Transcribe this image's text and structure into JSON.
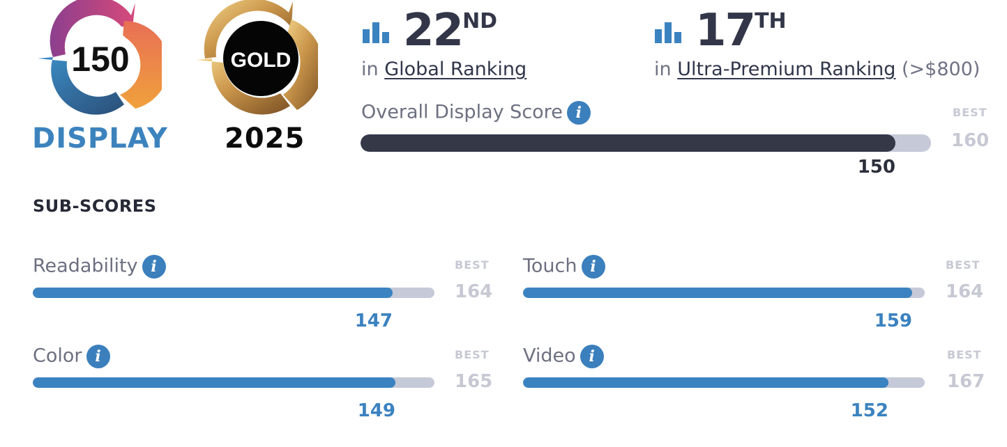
{
  "badges": {
    "display": {
      "score": "150",
      "caption": "DISPLAY"
    },
    "gold": {
      "label": "GOLD",
      "year": "2025"
    }
  },
  "rankings": {
    "global": {
      "rank": "22",
      "suffix": "ND",
      "prefix": "in",
      "link": "Global Ranking"
    },
    "ultra": {
      "rank": "17",
      "suffix": "TH",
      "prefix": "in",
      "link": "Ultra-Premium Ranking",
      "range": "(>$800)"
    }
  },
  "overall": {
    "label": "Overall Display Score",
    "best_label": "BEST",
    "best": 160,
    "score": 150
  },
  "subscores": {
    "title": "SUB-SCORES",
    "items": [
      {
        "label": "Readability",
        "best_label": "BEST",
        "best": 164,
        "score": 147
      },
      {
        "label": "Touch",
        "best_label": "BEST",
        "best": 164,
        "score": 159
      },
      {
        "label": "Color",
        "best_label": "BEST",
        "best": 165,
        "score": 149
      },
      {
        "label": "Video",
        "best_label": "BEST",
        "best": 167,
        "score": 152
      }
    ]
  },
  "colors": {
    "overall_fill": "#343847",
    "sub_fill": "#3b82c0",
    "track": "#c5c9d8",
    "accent": "#3c83be"
  }
}
